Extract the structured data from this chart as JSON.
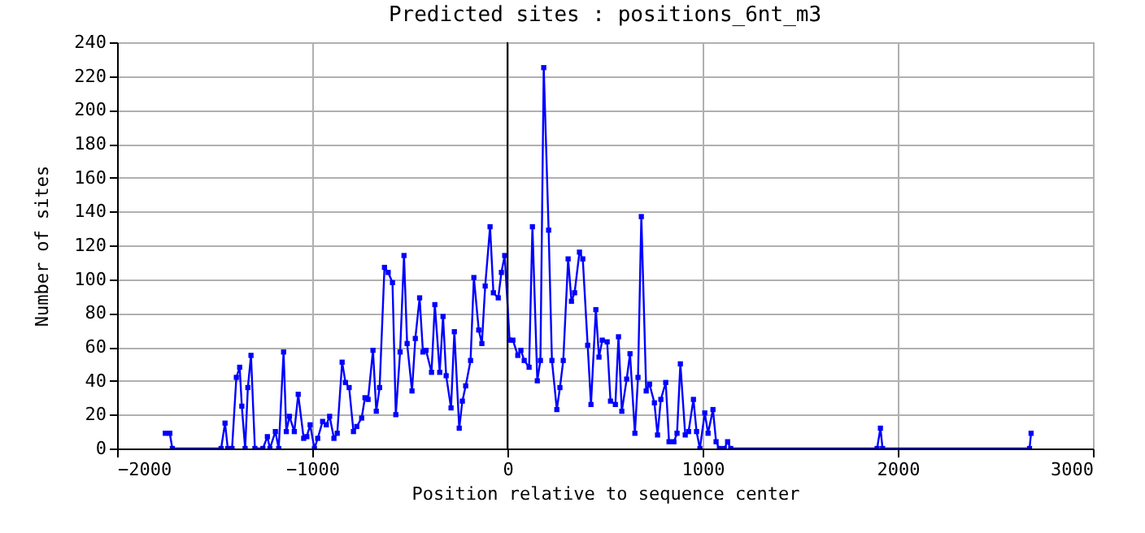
{
  "chart_data": {
    "type": "line",
    "title": "Predicted sites : positions_6nt_m3",
    "xlabel": "Position relative to sequence center",
    "ylabel": "Number of sites",
    "xlim": [
      -2000,
      3000
    ],
    "xticks": [
      -2000,
      -1000,
      0,
      1000,
      2000,
      3000
    ],
    "ylim": [
      0,
      240
    ],
    "yticks": [
      0,
      20,
      40,
      60,
      80,
      100,
      120,
      140,
      160,
      180,
      200,
      220,
      240
    ],
    "grid": true,
    "marker": "square",
    "line_style": "solid",
    "ref_lines": [
      {
        "axis": "x",
        "value": 0,
        "color": "#000000"
      }
    ],
    "series": [
      {
        "color": "#0000ff",
        "x": [
          -1753,
          -1730,
          -1717,
          -1467,
          -1447,
          -1433,
          -1411,
          -1389,
          -1372,
          -1361,
          -1344,
          -1330,
          -1314,
          -1294,
          -1253,
          -1230,
          -1217,
          -1189,
          -1172,
          -1147,
          -1133,
          -1117,
          -1092,
          -1072,
          -1044,
          -1028,
          -1011,
          -989,
          -972,
          -947,
          -928,
          -911,
          -889,
          -872,
          -847,
          -830,
          -811,
          -789,
          -772,
          -747,
          -730,
          -714,
          -689,
          -672,
          -655,
          -630,
          -611,
          -589,
          -572,
          -550,
          -530,
          -514,
          -489,
          -472,
          -450,
          -433,
          -417,
          -389,
          -372,
          -347,
          -330,
          -314,
          -289,
          -272,
          -247,
          -231,
          -214,
          -189,
          -172,
          -147,
          -131,
          -114,
          -89,
          -72,
          -47,
          -31,
          -14,
          11,
          28,
          53,
          69,
          86,
          111,
          128,
          153,
          169,
          186,
          211,
          228,
          253,
          269,
          286,
          311,
          328,
          344,
          369,
          386,
          411,
          428,
          453,
          469,
          486,
          511,
          528,
          553,
          569,
          586,
          611,
          628,
          653,
          669,
          686,
          711,
          728,
          753,
          769,
          786,
          811,
          828,
          853,
          869,
          886,
          911,
          928,
          953,
          969,
          986,
          1011,
          1028,
          1053,
          1069,
          1086,
          1111,
          1128,
          1144,
          1894,
          1911,
          1922,
          2675,
          2683
        ],
        "values": [
          9,
          9,
          0,
          0,
          15,
          0,
          0,
          42,
          48,
          25,
          0,
          36,
          55,
          0,
          0,
          7,
          0,
          10,
          0,
          57,
          10,
          19,
          10,
          32,
          6,
          7,
          14,
          0,
          6,
          16,
          14,
          19,
          6,
          9,
          51,
          39,
          36,
          10,
          13,
          18,
          30,
          29,
          58,
          22,
          36,
          107,
          104,
          98,
          20,
          57,
          114,
          62,
          34,
          65,
          89,
          57,
          58,
          45,
          85,
          45,
          78,
          43,
          24,
          69,
          12,
          28,
          37,
          52,
          101,
          70,
          62,
          96,
          131,
          92,
          89,
          104,
          114,
          64,
          64,
          55,
          58,
          52,
          48,
          131,
          40,
          52,
          225,
          129,
          52,
          23,
          36,
          52,
          112,
          87,
          92,
          116,
          112,
          61,
          26,
          82,
          54,
          64,
          63,
          28,
          26,
          66,
          22,
          41,
          56,
          9,
          42,
          137,
          34,
          38,
          27,
          8,
          29,
          39,
          4,
          4,
          9,
          50,
          8,
          10,
          29,
          10,
          0,
          21,
          9,
          23,
          4,
          0,
          0,
          4,
          0,
          0,
          12,
          0,
          0,
          9
        ]
      }
    ]
  }
}
